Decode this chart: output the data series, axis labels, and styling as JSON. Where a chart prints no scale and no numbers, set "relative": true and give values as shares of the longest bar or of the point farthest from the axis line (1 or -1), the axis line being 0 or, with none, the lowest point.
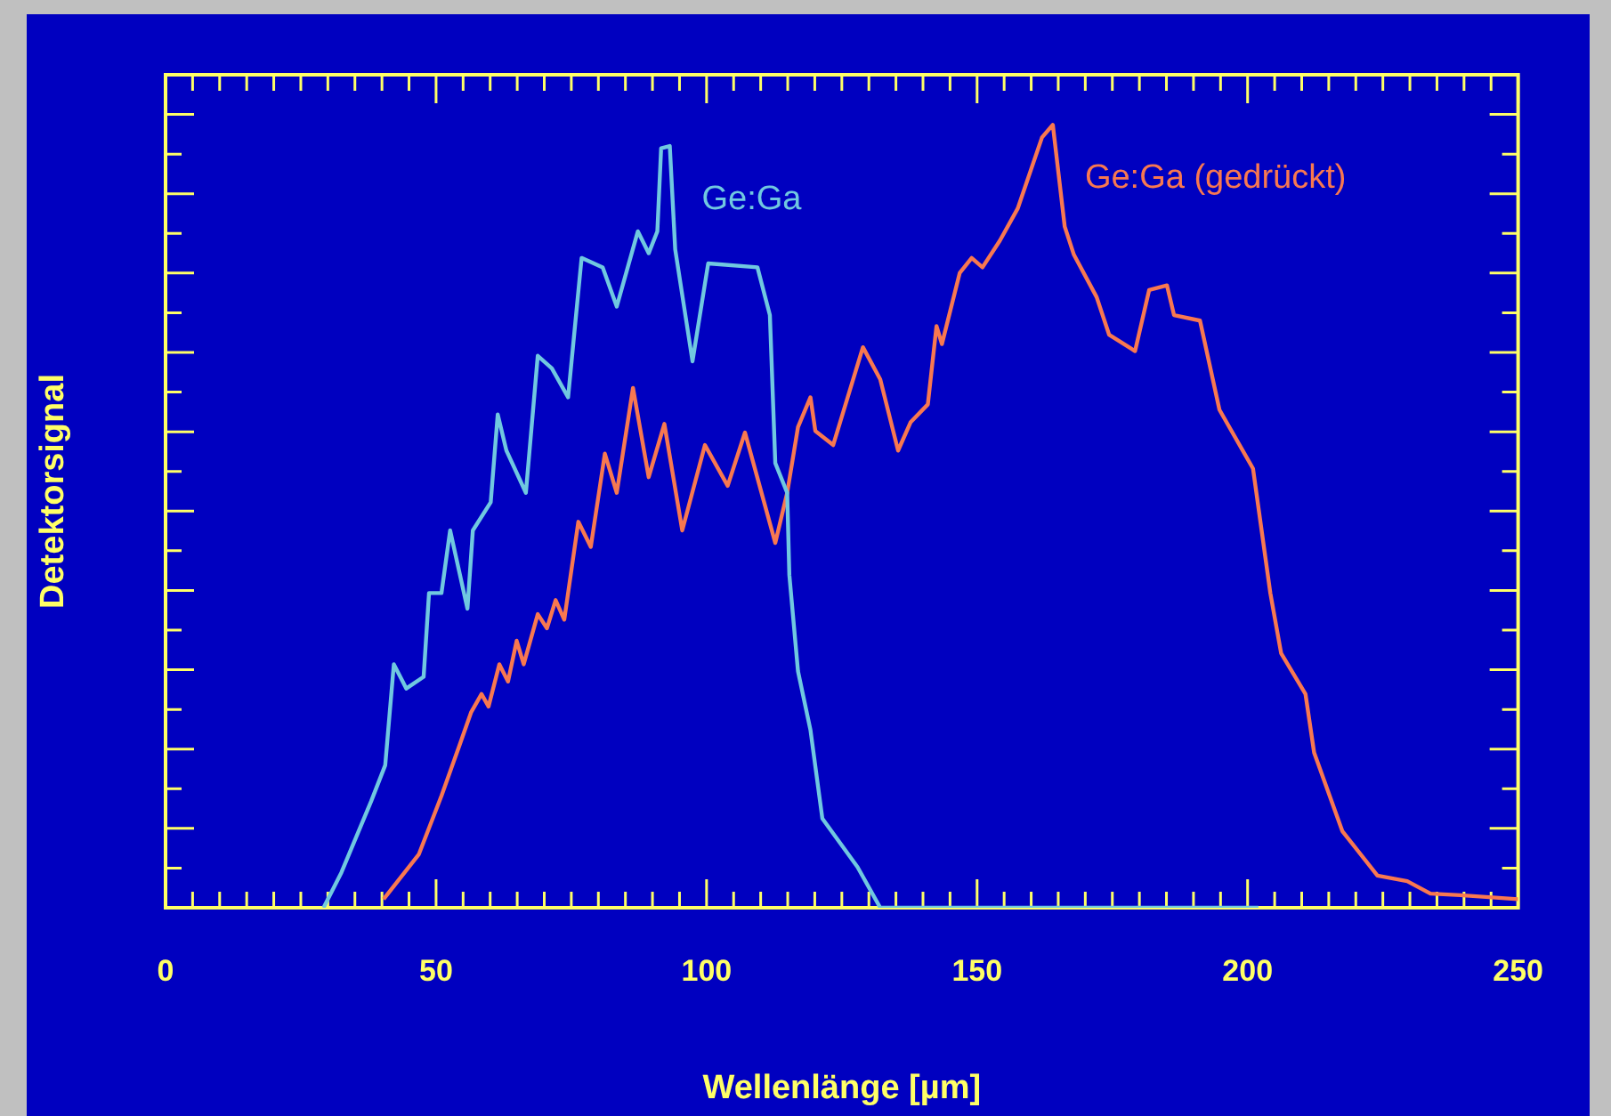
{
  "chart_data": {
    "type": "line",
    "relative": true,
    "xlabel": "Wellenlänge [µm]",
    "ylabel": "Detektorsignal",
    "xlim": [
      0,
      250
    ],
    "xticks": [
      0,
      {
        "value": 5,
        "label": null
      },
      {
        "value": 10,
        "label": null
      },
      {
        "value": 15,
        "label": null
      },
      {
        "value": 20,
        "label": null
      },
      {
        "value": 25,
        "label": null
      },
      {
        "value": 30,
        "label": null
      },
      {
        "value": 35,
        "label": null
      },
      {
        "value": 40,
        "label": null
      },
      {
        "value": 45,
        "label": null
      },
      50,
      {
        "value": 55,
        "label": null
      },
      {
        "value": 60,
        "label": null
      },
      {
        "value": 65,
        "label": null
      },
      {
        "value": 70,
        "label": null
      },
      {
        "value": 75,
        "label": null
      },
      {
        "value": 80,
        "label": null
      },
      {
        "value": 85,
        "label": null
      },
      {
        "value": 90,
        "label": null
      },
      {
        "value": 95,
        "label": null
      },
      100,
      {
        "value": 105,
        "label": null
      },
      {
        "value": 110,
        "label": null
      },
      {
        "value": 115,
        "label": null
      },
      {
        "value": 120,
        "label": null
      },
      {
        "value": 125,
        "label": null
      },
      {
        "value": 130,
        "label": null
      },
      {
        "value": 135,
        "label": null
      },
      {
        "value": 140,
        "label": null
      },
      {
        "value": 145,
        "label": null
      },
      150,
      {
        "value": 155,
        "label": null
      },
      {
        "value": 160,
        "label": null
      },
      {
        "value": 165,
        "label": null
      },
      {
        "value": 170,
        "label": null
      },
      {
        "value": 175,
        "label": null
      },
      {
        "value": 180,
        "label": null
      },
      {
        "value": 185,
        "label": null
      },
      {
        "value": 190,
        "label": null
      },
      {
        "value": 195,
        "label": null
      },
      200,
      {
        "value": 205,
        "label": null
      },
      {
        "value": 210,
        "label": null
      },
      {
        "value": 215,
        "label": null
      },
      {
        "value": 220,
        "label": null
      },
      {
        "value": 225,
        "label": null
      },
      {
        "value": 230,
        "label": null
      },
      {
        "value": 235,
        "label": null
      },
      {
        "value": 240,
        "label": null
      },
      {
        "value": 245,
        "label": null
      },
      250
    ],
    "grid": false,
    "legend": false,
    "marker": "none",
    "line_style": "solid",
    "series": [
      {
        "name": "Ge:Ga",
        "color": "#70c8e0",
        "x": [
          29.2,
          32.5,
          38.0,
          40.6,
          42.2,
          44.5,
          47.7,
          48.7,
          51.0,
          52.6,
          55.8,
          56.8,
          60.1,
          61.4,
          63.0,
          66.6,
          68.8,
          71.4,
          74.4,
          76.9,
          80.8,
          83.4,
          87.3,
          89.3,
          90.9,
          91.6,
          93.2,
          94.2,
          97.4,
          100.3,
          109.4,
          111.7,
          112.7,
          114.9,
          115.3,
          116.9,
          119.2,
          121.4,
          127.9,
          132.1,
          202
        ],
        "values": [
          0,
          0.045,
          0.136,
          0.182,
          0.311,
          0.28,
          0.295,
          0.402,
          0.402,
          0.482,
          0.382,
          0.482,
          0.518,
          0.63,
          0.584,
          0.53,
          0.705,
          0.689,
          0.652,
          0.83,
          0.818,
          0.768,
          0.864,
          0.836,
          0.864,
          0.97,
          0.973,
          0.841,
          0.698,
          0.823,
          0.818,
          0.757,
          0.568,
          0.53,
          0.425,
          0.302,
          0.227,
          0.114,
          0.052,
          0,
          0
        ]
      },
      {
        "name": "Ge:Ga (gedrückt)",
        "color": "#f87850",
        "x": [
          40.3,
          46.8,
          51.0,
          54.2,
          56.5,
          58.4,
          59.7,
          61.7,
          63.3,
          64.9,
          66.2,
          68.8,
          70.5,
          72.1,
          73.7,
          76.3,
          78.6,
          81.2,
          83.4,
          86.4,
          89.3,
          92.2,
          95.5,
          99.7,
          103.9,
          107.1,
          112.7,
          114.9,
          116.9,
          119.2,
          120.1,
          123.4,
          128.9,
          132.1,
          135.4,
          137.7,
          140.9,
          142.5,
          143.5,
          146.8,
          149.0,
          151.0,
          154.2,
          157.5,
          162.0,
          164.0,
          166.2,
          167.9,
          172.1,
          174.4,
          179.2,
          181.8,
          185.1,
          186.4,
          191.2,
          194.8,
          201.0,
          204.2,
          206.2,
          210.7,
          212.3,
          217.5,
          224.0,
          229.5,
          233.8,
          239.3,
          250.0
        ],
        "values": [
          0.011,
          0.068,
          0.143,
          0.205,
          0.25,
          0.273,
          0.257,
          0.311,
          0.289,
          0.341,
          0.311,
          0.375,
          0.357,
          0.393,
          0.368,
          0.493,
          0.461,
          0.58,
          0.53,
          0.664,
          0.55,
          0.618,
          0.482,
          0.591,
          0.539,
          0.607,
          0.466,
          0.53,
          0.614,
          0.652,
          0.609,
          0.591,
          0.716,
          0.675,
          0.584,
          0.62,
          0.643,
          0.743,
          0.72,
          0.811,
          0.83,
          0.818,
          0.852,
          0.893,
          0.984,
          1,
          0.87,
          0.834,
          0.78,
          0.732,
          0.711,
          0.789,
          0.795,
          0.757,
          0.75,
          0.636,
          0.561,
          0.402,
          0.325,
          0.273,
          0.198,
          0.098,
          0.041,
          0.034,
          0.018,
          0.016,
          0.011
        ]
      }
    ]
  }
}
